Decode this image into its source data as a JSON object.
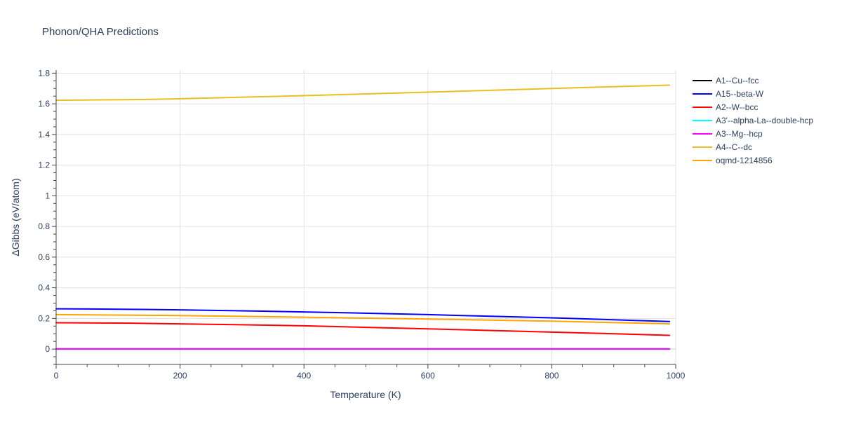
{
  "chart_data": {
    "type": "line",
    "title": "Phonon/QHA Predictions",
    "xlabel": "Temperature (K)",
    "ylabel": "ΔGibbs (eV/atom)",
    "xlim": [
      0,
      1000
    ],
    "ylim": [
      -0.1,
      1.82
    ],
    "x_ticks": [
      0,
      200,
      400,
      600,
      800,
      1000
    ],
    "x_tick_labels": [
      "0",
      "200",
      "400",
      "600",
      "800",
      "1000"
    ],
    "y_ticks": [
      0,
      0.2,
      0.4,
      0.6,
      0.8,
      1,
      1.2,
      1.4,
      1.6,
      1.8
    ],
    "y_tick_labels": [
      "0",
      "0.2",
      "0.4",
      "0.6",
      "0.8",
      "1",
      "1.2",
      "1.4",
      "1.6",
      "1.8"
    ],
    "grid": true,
    "legend_position": "right",
    "series": [
      {
        "name": "A1--Cu--fcc",
        "color": "#000000",
        "x": [
          0,
          200,
          400,
          600,
          800,
          990
        ],
        "y": [
          0,
          0,
          0,
          0,
          0,
          0
        ]
      },
      {
        "name": "A15--beta-W",
        "color": "#0000ff",
        "x": [
          0,
          140,
          300,
          480,
          600,
          800,
          990
        ],
        "y": [
          0.263,
          0.259,
          0.25,
          0.236,
          0.225,
          0.204,
          0.18
        ]
      },
      {
        "name": "A2--W--bcc",
        "color": "#ff0000",
        "x": [
          0,
          120,
          280,
          400,
          600,
          800,
          990
        ],
        "y": [
          0.172,
          0.169,
          0.16,
          0.152,
          0.132,
          0.111,
          0.09
        ]
      },
      {
        "name": "A3'--alpha-La--double-hcp",
        "color": "#00ffff",
        "x": [
          0,
          200,
          400,
          600,
          800,
          990
        ],
        "y": [
          0.001,
          0.001,
          0.001,
          0.001,
          0.001,
          0.001
        ]
      },
      {
        "name": "A3--Mg--hcp",
        "color": "#ff00ff",
        "x": [
          0,
          200,
          400,
          600,
          800,
          990
        ],
        "y": [
          0.002,
          0.002,
          0.002,
          0.002,
          0.002,
          0.002
        ]
      },
      {
        "name": "A4--C--dc",
        "color": "#ebbd1f",
        "x": [
          0,
          140,
          200,
          400,
          600,
          800,
          990
        ],
        "y": [
          1.623,
          1.628,
          1.633,
          1.653,
          1.676,
          1.7,
          1.722
        ]
      },
      {
        "name": "oqmd-1214856",
        "color": "#ffa500",
        "x": [
          0,
          200,
          400,
          600,
          800,
          990
        ],
        "y": [
          0.225,
          0.219,
          0.208,
          0.196,
          0.182,
          0.165
        ]
      }
    ]
  }
}
